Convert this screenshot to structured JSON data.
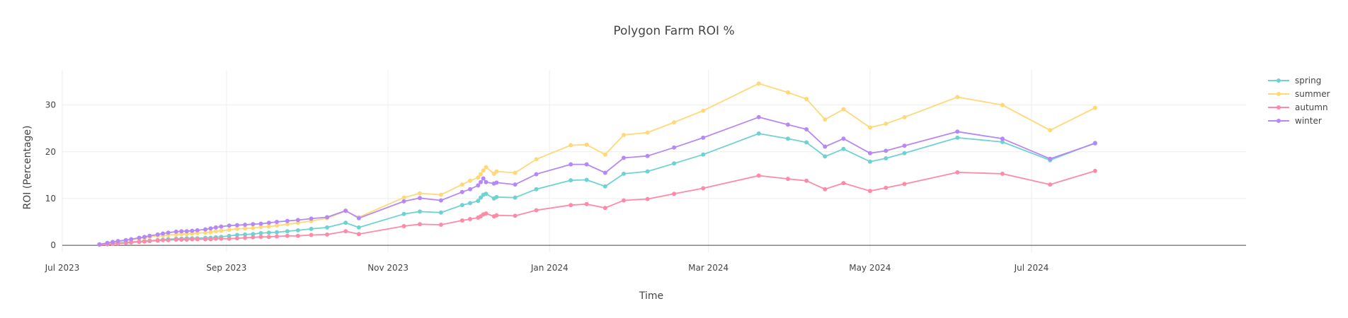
{
  "chart_data": {
    "type": "line",
    "title": "Polygon Farm ROI %",
    "xlabel": "Time",
    "ylabel": "ROI (Percentage)",
    "xlim": [
      "2023-07-01",
      "2024-09-20"
    ],
    "ylim": [
      -1.5,
      37.5
    ],
    "x_ticks": [
      {
        "date": "2023-07-01",
        "label": "Jul 2023"
      },
      {
        "date": "2023-09-01",
        "label": "Sep 2023"
      },
      {
        "date": "2023-11-01",
        "label": "Nov 2023"
      },
      {
        "date": "2024-01-01",
        "label": "Jan 2024"
      },
      {
        "date": "2024-03-01",
        "label": "Mar 2024"
      },
      {
        "date": "2024-05-01",
        "label": "May 2024"
      },
      {
        "date": "2024-07-01",
        "label": "Jul 2024"
      }
    ],
    "y_ticks": [
      {
        "value": 0,
        "label": "0"
      },
      {
        "value": 10,
        "label": "10"
      },
      {
        "value": 20,
        "label": "20"
      },
      {
        "value": 30,
        "label": "30"
      }
    ],
    "grid": true,
    "legend_position": "top-right",
    "x": [
      "2023-07-15",
      "2023-07-18",
      "2023-07-20",
      "2023-07-22",
      "2023-07-25",
      "2023-07-27",
      "2023-07-30",
      "2023-08-01",
      "2023-08-03",
      "2023-08-06",
      "2023-08-08",
      "2023-08-10",
      "2023-08-13",
      "2023-08-15",
      "2023-08-17",
      "2023-08-19",
      "2023-08-21",
      "2023-08-24",
      "2023-08-26",
      "2023-08-28",
      "2023-08-30",
      "2023-09-02",
      "2023-09-05",
      "2023-09-08",
      "2023-09-11",
      "2023-09-14",
      "2023-09-17",
      "2023-09-20",
      "2023-09-24",
      "2023-09-28",
      "2023-10-03",
      "2023-10-09",
      "2023-10-16",
      "2023-10-21",
      "2023-11-07",
      "2023-11-13",
      "2023-11-21",
      "2023-11-29",
      "2023-12-02",
      "2023-12-05",
      "2023-12-06",
      "2023-12-07",
      "2023-12-08",
      "2023-12-11",
      "2023-12-12",
      "2023-12-19",
      "2023-12-27",
      "2024-01-09",
      "2024-01-15",
      "2024-01-22",
      "2024-01-29",
      "2024-02-07",
      "2024-02-17",
      "2024-02-28",
      "2024-03-20",
      "2024-03-31",
      "2024-04-07",
      "2024-04-14",
      "2024-04-21",
      "2024-05-01",
      "2024-05-07",
      "2024-05-14",
      "2024-06-03",
      "2024-06-20",
      "2024-07-08",
      "2024-07-25"
    ],
    "series": [
      {
        "name": "spring",
        "color": "#6fd2d2",
        "values": [
          0.2,
          0.3,
          0.4,
          0.5,
          0.6,
          0.7,
          0.8,
          0.9,
          1.0,
          1.1,
          1.2,
          1.3,
          1.4,
          1.4,
          1.5,
          1.5,
          1.5,
          1.6,
          1.6,
          1.7,
          1.8,
          2.0,
          2.2,
          2.3,
          2.4,
          2.6,
          2.7,
          2.8,
          3.0,
          3.2,
          3.5,
          3.8,
          4.8,
          3.8,
          6.7,
          7.2,
          7.0,
          8.6,
          9.0,
          9.5,
          10.2,
          10.8,
          11.0,
          10.0,
          10.3,
          10.2,
          12.0,
          13.9,
          14.0,
          12.6,
          15.3,
          15.8,
          17.5,
          19.4,
          23.9,
          22.8,
          22.0,
          19.0,
          20.6,
          17.9,
          18.6,
          19.7,
          23.0,
          22.1,
          18.2,
          21.9
        ]
      },
      {
        "name": "summer",
        "color": "#ffd878",
        "values": [
          0.2,
          0.4,
          0.6,
          0.8,
          1.0,
          1.2,
          1.4,
          1.6,
          1.8,
          2.0,
          2.1,
          2.2,
          2.3,
          2.4,
          2.4,
          2.5,
          2.6,
          2.7,
          2.8,
          3.0,
          3.1,
          3.3,
          3.5,
          3.6,
          3.7,
          3.9,
          4.0,
          4.2,
          4.5,
          4.8,
          5.2,
          5.8,
          7.3,
          6.0,
          10.2,
          11.1,
          10.8,
          13.0,
          13.8,
          14.5,
          15.2,
          16.0,
          16.7,
          15.3,
          15.8,
          15.5,
          18.4,
          21.4,
          21.5,
          19.4,
          23.6,
          24.1,
          26.3,
          28.8,
          34.6,
          32.7,
          31.3,
          26.9,
          29.1,
          25.2,
          26.0,
          27.4,
          31.7,
          30.0,
          24.6,
          29.4
        ]
      },
      {
        "name": "autumn",
        "color": "#ff8aa6",
        "values": [
          0.1,
          0.2,
          0.3,
          0.4,
          0.5,
          0.6,
          0.7,
          0.8,
          0.9,
          1.0,
          1.1,
          1.1,
          1.2,
          1.2,
          1.2,
          1.3,
          1.3,
          1.3,
          1.3,
          1.4,
          1.4,
          1.4,
          1.5,
          1.6,
          1.7,
          1.8,
          1.8,
          1.9,
          2.0,
          2.0,
          2.2,
          2.3,
          3.0,
          2.4,
          4.1,
          4.5,
          4.4,
          5.3,
          5.6,
          5.9,
          6.2,
          6.6,
          6.8,
          6.2,
          6.4,
          6.3,
          7.5,
          8.6,
          8.8,
          8.0,
          9.6,
          9.9,
          11.0,
          12.2,
          14.9,
          14.2,
          13.8,
          12.0,
          13.3,
          11.6,
          12.3,
          13.1,
          15.6,
          15.3,
          13.0,
          15.9
        ]
      },
      {
        "name": "winter",
        "color": "#b688f5",
        "values": [
          0.2,
          0.5,
          0.7,
          0.9,
          1.1,
          1.3,
          1.6,
          1.8,
          2.0,
          2.3,
          2.5,
          2.7,
          2.9,
          3.0,
          3.0,
          3.1,
          3.2,
          3.4,
          3.6,
          3.8,
          4.0,
          4.2,
          4.3,
          4.4,
          4.5,
          4.6,
          4.8,
          5.0,
          5.2,
          5.4,
          5.7,
          6.0,
          7.4,
          5.8,
          9.4,
          10.1,
          9.6,
          11.4,
          12.0,
          12.8,
          13.5,
          14.3,
          13.5,
          13.2,
          13.4,
          13.0,
          15.2,
          17.3,
          17.3,
          15.5,
          18.7,
          19.1,
          20.9,
          23.0,
          27.4,
          25.8,
          24.8,
          21.1,
          22.8,
          19.7,
          20.2,
          21.3,
          24.3,
          22.8,
          18.5,
          21.8
        ]
      }
    ]
  }
}
